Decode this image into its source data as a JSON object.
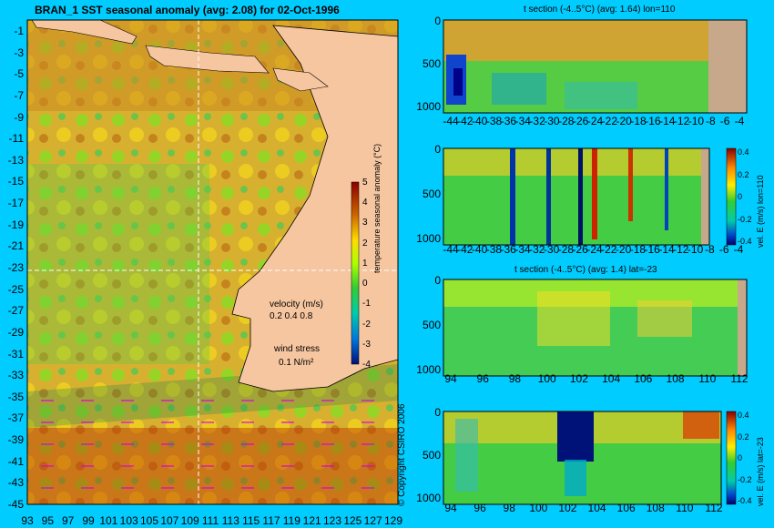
{
  "main_title": "BRAN_1  SST seasonal anomaly (avg: 2.08) for 02-Oct-1996",
  "copyright": "© Copyright CSIRO 2006",
  "colors": {
    "page_bg": "#00ccff",
    "land": "#f5c6a0",
    "ocean_pos": "#d4a020",
    "ocean_neg": "#44cc44",
    "section_land": "#c8a88a"
  },
  "chart_data": [
    {
      "type": "heatmap",
      "title": "BRAN_1  SST seasonal anomaly (avg: 2.08) for 02-Oct-1996",
      "x_ticks": [
        "93",
        "95",
        "97",
        "99",
        "101",
        "103",
        "105",
        "107",
        "109",
        "111",
        "113",
        "115",
        "117",
        "119",
        "121",
        "123",
        "125",
        "127",
        "129"
      ],
      "y_ticks": [
        "-1",
        "-3",
        "-5",
        "-7",
        "-9",
        "-11",
        "-13",
        "-15",
        "-17",
        "-19",
        "-21",
        "-23",
        "-25",
        "-27",
        "-29",
        "-31",
        "-33",
        "-35",
        "-37",
        "-39",
        "-41",
        "-43",
        "-45"
      ],
      "xlim": [
        93,
        130
      ],
      "ylim": [
        -45,
        0
      ],
      "colorbar": {
        "label": "temperature seasonal anomaly (°C)",
        "ticks": [
          "5",
          "4",
          "3",
          "2",
          "1",
          "0",
          "-1",
          "-2",
          "-3",
          "-4"
        ],
        "range": [
          -4,
          5
        ]
      },
      "legend": {
        "velocity_label": "velocity (m/s)",
        "velocity_values": "0.2 0.4 0.8",
        "wind_label": "wind stress",
        "wind_value": "0.1 N/m²"
      },
      "avg": 2.08,
      "date": "02-Oct-1996"
    },
    {
      "type": "heatmap",
      "title": "t section (-4..5°C) (avg: 1.64) lon=110",
      "x_ticks": [
        "-44",
        "-42",
        "-40",
        "-38",
        "-36",
        "-34",
        "-32",
        "-30",
        "-28",
        "-26",
        "-24",
        "-22",
        "-20",
        "-18",
        "-16",
        "-14",
        "-12",
        "-10",
        "-8",
        "-6",
        "-4"
      ],
      "y_ticks": [
        "0",
        "500",
        "1000"
      ],
      "avg": 1.64
    },
    {
      "type": "heatmap",
      "title": "",
      "x_ticks": [
        "-44",
        "-42",
        "-40",
        "-38",
        "-36",
        "-34",
        "-32",
        "-30",
        "-28",
        "-26",
        "-24",
        "-22",
        "-20",
        "-18",
        "-16",
        "-14",
        "-12",
        "-10",
        "-8",
        "-6",
        "-4"
      ],
      "y_ticks": [
        "0",
        "500",
        "1000"
      ],
      "colorbar": {
        "label": "vel. E (m/s) lon=110",
        "ticks": [
          "0.4",
          "0.2",
          "0",
          "-0.2",
          "-0.4"
        ],
        "range": [
          -0.4,
          0.4
        ]
      }
    },
    {
      "type": "heatmap",
      "title": "t section (-4..5°C) (avg: 1.4) lat=-23",
      "x_ticks": [
        "94",
        "96",
        "98",
        "100",
        "102",
        "104",
        "106",
        "108",
        "110",
        "112"
      ],
      "y_ticks": [
        "0",
        "500",
        "1000"
      ],
      "avg": 1.4
    },
    {
      "type": "heatmap",
      "title": "",
      "x_ticks": [
        "94",
        "96",
        "98",
        "100",
        "102",
        "104",
        "106",
        "108",
        "110",
        "112"
      ],
      "y_ticks": [
        "0",
        "500",
        "1000"
      ],
      "colorbar": {
        "label": "vel. E (m/s) lat=-23",
        "ticks": [
          "0.4",
          "0.2",
          "0",
          "-0.2",
          "-0.4"
        ],
        "range": [
          -0.4,
          0.4
        ]
      }
    }
  ]
}
